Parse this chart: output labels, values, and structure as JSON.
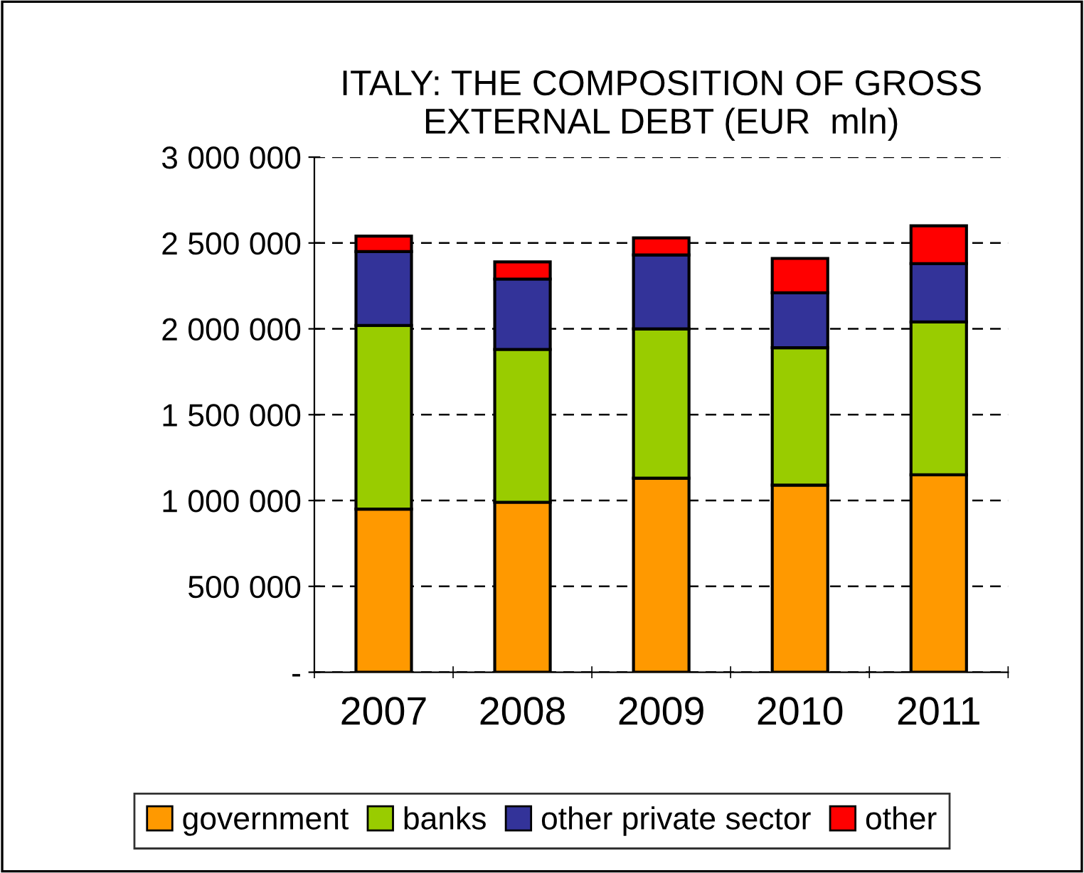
{
  "chart_data": {
    "type": "bar",
    "title": "ITALY: THE COMPOSITION OF GROSS\nEXTERNAL DEBT (EUR  mln)",
    "categories": [
      "2007",
      "2008",
      "2009",
      "2010",
      "2011"
    ],
    "stacked": true,
    "series": [
      {
        "name": "government",
        "color": "#ff9900",
        "values": [
          950000,
          990000,
          1130000,
          1090000,
          1150000
        ]
      },
      {
        "name": "banks",
        "color": "#99cc00",
        "values": [
          1070000,
          890000,
          870000,
          800000,
          890000
        ]
      },
      {
        "name": "other private sector",
        "color": "#333399",
        "values": [
          430000,
          410000,
          430000,
          320000,
          340000
        ]
      },
      {
        "name": "other",
        "color": "#ff0000",
        "values": [
          90000,
          100000,
          100000,
          200000,
          220000
        ]
      }
    ],
    "ylim": [
      0,
      3000000
    ],
    "yticks": [
      {
        "value": 0,
        "label": "-"
      },
      {
        "value": 500000,
        "label": "500 000"
      },
      {
        "value": 1000000,
        "label": "1 000 000"
      },
      {
        "value": 1500000,
        "label": "1 500 000"
      },
      {
        "value": 2000000,
        "label": "2 000 000"
      },
      {
        "value": 2500000,
        "label": "2 500 000"
      },
      {
        "value": 3000000,
        "label": "3 000 000"
      }
    ],
    "grid": "y",
    "legend": "bottom"
  }
}
